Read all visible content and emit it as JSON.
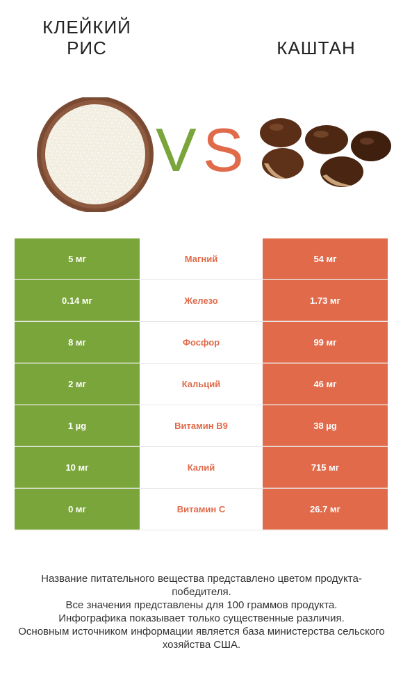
{
  "header": {
    "left_title": "КЛЕЙКИЙ РИС",
    "right_title": "КАШТАН",
    "vs_v": "V",
    "vs_s": "S"
  },
  "colors": {
    "winner_left": "#7aa53a",
    "winner_right": "#e06a4a"
  },
  "icons": {
    "left": "rice-bowl-icon",
    "right": "chestnuts-icon"
  },
  "chart_data": {
    "type": "table",
    "columns": [
      "КЛЕЙКИЙ РИС",
      "",
      "КАШТАН"
    ],
    "rows": [
      {
        "nutrient": "Магний",
        "left": "5 мг",
        "right": "54 мг"
      },
      {
        "nutrient": "Железо",
        "left": "0.14 мг",
        "right": "1.73 мг"
      },
      {
        "nutrient": "Фосфор",
        "left": "8 мг",
        "right": "99 мг"
      },
      {
        "nutrient": "Кальций",
        "left": "2 мг",
        "right": "46 мг"
      },
      {
        "nutrient": "Витамин B9",
        "left": "1 µg",
        "right": "38 µg"
      },
      {
        "nutrient": "Калий",
        "left": "10 мг",
        "right": "715 мг"
      },
      {
        "nutrient": "Витамин C",
        "left": "0 мг",
        "right": "26.7 мг"
      }
    ]
  },
  "footer": {
    "line1": "Название питательного вещества представлено цветом продукта-победителя.",
    "line2": "Все значения представлены для 100 граммов продукта.",
    "line3": "Инфографика показывает только существенные различия.",
    "line4": "Основным источником информации является база министерства сельского хозяйства США."
  }
}
